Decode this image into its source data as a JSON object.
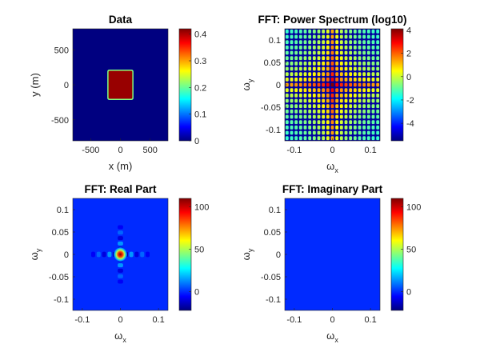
{
  "colormap": "jet",
  "chart_data": [
    {
      "type": "heatmap",
      "id": "data",
      "title": "Data",
      "xlabel": "x (m)",
      "ylabel": "y (m)",
      "xlim": [
        -800,
        800
      ],
      "ylim": [
        -800,
        800
      ],
      "xticks": [
        -500,
        0,
        500
      ],
      "yticks": [
        -500,
        0,
        500
      ],
      "xtick_labels": [
        "-500",
        "0",
        "500"
      ],
      "ytick_labels": [
        "-500",
        "0",
        "500"
      ],
      "background_value": 0,
      "feature": {
        "shape": "square",
        "x": [
          -200,
          200
        ],
        "y": [
          -200,
          200
        ],
        "value": 0.41
      },
      "colorbar": {
        "range": [
          0,
          0.42
        ],
        "ticks": [
          0,
          0.1,
          0.2,
          0.3,
          0.4
        ],
        "tick_labels": [
          "0",
          "0.1",
          "0.2",
          "0.3",
          "0.4"
        ]
      }
    },
    {
      "type": "heatmap",
      "id": "power",
      "title": "FFT: Power Spectrum (log10)",
      "xlabel": "ω_x",
      "ylabel": "ω_y",
      "xlim": [
        -0.125,
        0.125
      ],
      "ylim": [
        -0.125,
        0.125
      ],
      "xticks": [
        -0.1,
        0,
        0.1
      ],
      "yticks": [
        -0.1,
        -0.05,
        0,
        0.05,
        0.1
      ],
      "xtick_labels": [
        "-0.1",
        "0",
        "0.1"
      ],
      "ytick_labels": [
        "-0.1",
        "-0.05",
        "0",
        "0.05",
        "0.1"
      ],
      "pattern": "sinc-squared log power, grid of side lobes",
      "colorbar": {
        "range": [
          -5.5,
          4.1
        ],
        "ticks": [
          -4,
          -2,
          0,
          2,
          4
        ],
        "tick_labels": [
          "-4",
          "-2",
          "0",
          "2",
          "4"
        ]
      }
    },
    {
      "type": "heatmap",
      "id": "real",
      "title": "FFT: Real Part",
      "xlabel": "ω_x",
      "ylabel": "ω_y",
      "xlim": [
        -0.125,
        0.125
      ],
      "ylim": [
        -0.125,
        0.125
      ],
      "xticks": [
        -0.1,
        0,
        0.1
      ],
      "yticks": [
        -0.1,
        -0.05,
        0,
        0.05,
        0.1
      ],
      "xtick_labels": [
        "-0.1",
        "0",
        "0.1"
      ],
      "ytick_labels": [
        "-0.1",
        "-0.05",
        "0",
        "0.05",
        "0.1"
      ],
      "peak_value": 108,
      "pattern": "2D sinc centered at origin",
      "colorbar": {
        "range": [
          -22,
          110
        ],
        "ticks": [
          0,
          50,
          100
        ],
        "tick_labels": [
          "0",
          "50",
          "100"
        ]
      }
    },
    {
      "type": "heatmap",
      "id": "imag",
      "title": "FFT: Imaginary Part",
      "xlabel": "ω_x",
      "ylabel": "ω_y",
      "xlim": [
        -0.125,
        0.125
      ],
      "ylim": [
        -0.125,
        0.125
      ],
      "xticks": [
        -0.1,
        0,
        0.1
      ],
      "yticks": [
        -0.1,
        -0.05,
        0,
        0.05,
        0.1
      ],
      "xtick_labels": [
        "-0.1",
        "0",
        "0.1"
      ],
      "ytick_labels": [
        "-0.1",
        "-0.05",
        "0",
        "0.05",
        "0.1"
      ],
      "uniform_value": 0,
      "colorbar": {
        "range": [
          -22,
          110
        ],
        "ticks": [
          0,
          50,
          100
        ],
        "tick_labels": [
          "0",
          "50",
          "100"
        ]
      }
    }
  ]
}
